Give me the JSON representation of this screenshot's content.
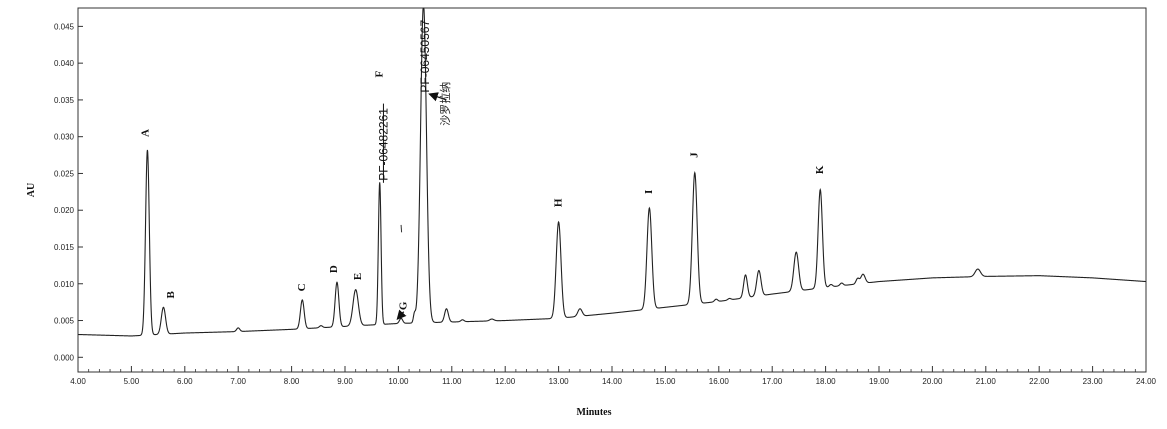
{
  "chart_data": {
    "type": "line",
    "xlabel": "Minutes",
    "ylabel": "AU",
    "xlim": [
      4.0,
      24.0
    ],
    "ylim": [
      -0.002,
      0.0475
    ],
    "x_ticks": [
      4.0,
      5.0,
      6.0,
      7.0,
      8.0,
      9.0,
      10.0,
      11.0,
      12.0,
      13.0,
      14.0,
      15.0,
      16.0,
      17.0,
      18.0,
      19.0,
      20.0,
      21.0,
      22.0,
      23.0,
      24.0
    ],
    "x_tick_labels": [
      "4.00",
      "5.00",
      "6.00",
      "7.00",
      "8.00",
      "9.00",
      "10.00",
      "11.00",
      "12.00",
      "13.00",
      "14.00",
      "15.00",
      "16.00",
      "17.00",
      "18.00",
      "19.00",
      "20.00",
      "21.00",
      "22.00",
      "23.00",
      "24.00"
    ],
    "y_ticks": [
      0.0,
      0.005,
      0.01,
      0.015,
      0.02,
      0.025,
      0.03,
      0.035,
      0.04,
      0.045
    ],
    "y_tick_labels": [
      "0.000",
      "0.005",
      "0.010",
      "0.015",
      "0.020",
      "0.025",
      "0.030",
      "0.035",
      "0.040",
      "0.045"
    ],
    "grid": false,
    "baseline": [
      [
        4.0,
        0.0031
      ],
      [
        5.0,
        0.0029
      ],
      [
        6.0,
        0.0033
      ],
      [
        7.0,
        0.0035
      ],
      [
        8.0,
        0.0038
      ],
      [
        9.0,
        0.0042
      ],
      [
        10.0,
        0.0046
      ],
      [
        11.0,
        0.0048
      ],
      [
        12.0,
        0.005
      ],
      [
        13.0,
        0.0053
      ],
      [
        14.0,
        0.006
      ],
      [
        15.0,
        0.0068
      ],
      [
        16.0,
        0.0076
      ],
      [
        17.0,
        0.0086
      ],
      [
        18.0,
        0.0095
      ],
      [
        19.0,
        0.0103
      ],
      [
        20.0,
        0.0108
      ],
      [
        21.0,
        0.011
      ],
      [
        22.0,
        0.0111
      ],
      [
        23.0,
        0.0108
      ],
      [
        24.0,
        0.0103
      ]
    ],
    "peaks": [
      {
        "x": 5.3,
        "y": 0.0282,
        "w": 0.035
      },
      {
        "x": 5.6,
        "y": 0.0068,
        "w": 0.04
      },
      {
        "x": 7.0,
        "y": 0.004,
        "w": 0.03
      },
      {
        "x": 8.2,
        "y": 0.0078,
        "w": 0.035
      },
      {
        "x": 8.55,
        "y": 0.0043,
        "w": 0.03
      },
      {
        "x": 8.85,
        "y": 0.0102,
        "w": 0.035
      },
      {
        "x": 9.2,
        "y": 0.0092,
        "w": 0.05
      },
      {
        "x": 9.65,
        "y": 0.0238,
        "w": 0.025
      },
      {
        "x": 10.05,
        "y": 0.0053,
        "w": 0.03
      },
      {
        "x": 10.3,
        "y": 0.0058,
        "w": 0.02
      },
      {
        "x": 10.47,
        "y": 0.048,
        "w": 0.055
      },
      {
        "x": 10.9,
        "y": 0.0066,
        "w": 0.035
      },
      {
        "x": 11.2,
        "y": 0.0051,
        "w": 0.03
      },
      {
        "x": 11.75,
        "y": 0.0052,
        "w": 0.04
      },
      {
        "x": 13.0,
        "y": 0.0184,
        "w": 0.045
      },
      {
        "x": 13.4,
        "y": 0.0066,
        "w": 0.04
      },
      {
        "x": 14.7,
        "y": 0.0203,
        "w": 0.045
      },
      {
        "x": 15.55,
        "y": 0.0251,
        "w": 0.045
      },
      {
        "x": 15.95,
        "y": 0.0079,
        "w": 0.03
      },
      {
        "x": 16.2,
        "y": 0.008,
        "w": 0.03
      },
      {
        "x": 16.5,
        "y": 0.0112,
        "w": 0.035
      },
      {
        "x": 16.75,
        "y": 0.0118,
        "w": 0.04
      },
      {
        "x": 17.45,
        "y": 0.0143,
        "w": 0.045
      },
      {
        "x": 17.9,
        "y": 0.0228,
        "w": 0.04
      },
      {
        "x": 18.1,
        "y": 0.0099,
        "w": 0.03
      },
      {
        "x": 18.3,
        "y": 0.0101,
        "w": 0.03
      },
      {
        "x": 18.6,
        "y": 0.0107,
        "w": 0.03
      },
      {
        "x": 18.7,
        "y": 0.0113,
        "w": 0.04
      },
      {
        "x": 20.85,
        "y": 0.012,
        "w": 0.05
      }
    ],
    "annotations": [
      {
        "text": "A",
        "x": 5.32,
        "y": 0.0305
      },
      {
        "text": "B",
        "x": 5.8,
        "y": 0.0085
      },
      {
        "text": "C",
        "x": 8.25,
        "y": 0.0095
      },
      {
        "text": "D",
        "x": 8.85,
        "y": 0.012
      },
      {
        "text": "E",
        "x": 9.3,
        "y": 0.011
      },
      {
        "text": "F",
        "x": 9.7,
        "y": 0.0385
      },
      {
        "text": "G",
        "x": 10.15,
        "y": 0.007
      },
      {
        "text": "H",
        "x": 13.05,
        "y": 0.021
      },
      {
        "text": "I",
        "x": 14.75,
        "y": 0.0225
      },
      {
        "text": "J",
        "x": 15.6,
        "y": 0.0275
      },
      {
        "text": "K",
        "x": 17.95,
        "y": 0.0255
      }
    ],
    "compound_labels": [
      {
        "text": "PF-06482261",
        "x": 9.72,
        "y": 0.024
      },
      {
        "text": "PF-06450567",
        "x": 10.5,
        "y": 0.036
      }
    ],
    "chinese_label": "沙罗拉纳"
  }
}
